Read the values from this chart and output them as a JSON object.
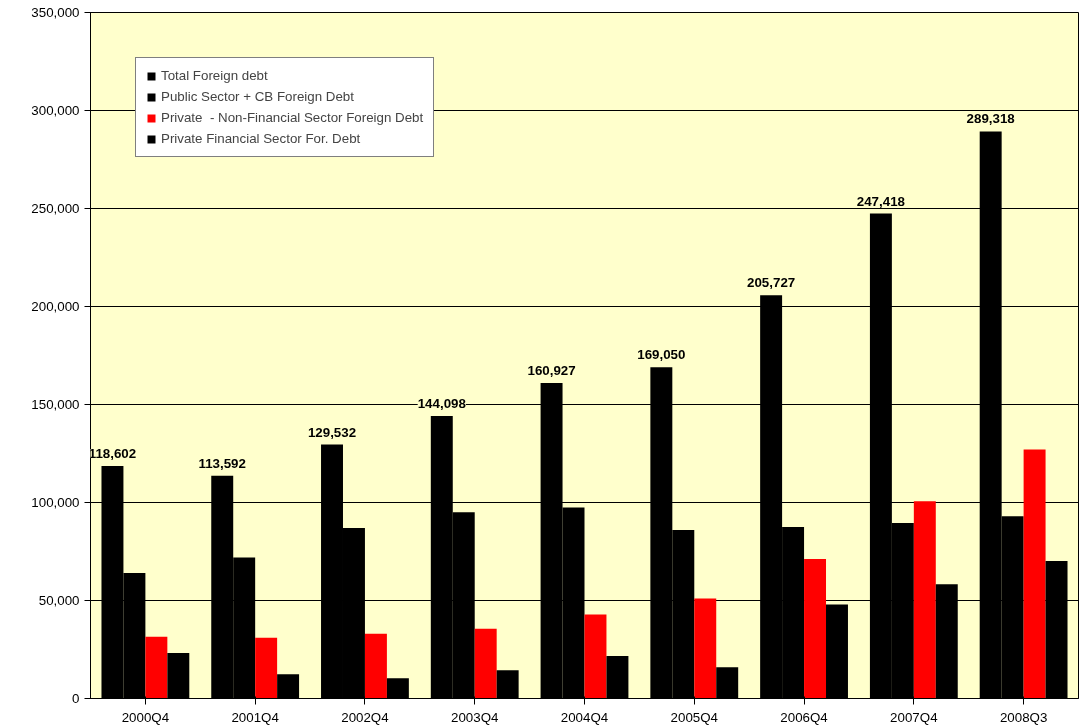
{
  "chart_data": {
    "type": "bar",
    "categories": [
      "2000Q4",
      "2001Q4",
      "2002Q4",
      "2003Q4",
      "2004Q4",
      "2005Q4",
      "2006Q4",
      "2007Q4",
      "2008Q3"
    ],
    "series": [
      {
        "name": "Total Foreign debt",
        "color": "#000000",
        "values": [
          118602,
          113592,
          129532,
          144098,
          160927,
          169050,
          205727,
          247418,
          289318
        ],
        "value_labels": [
          "118,602",
          "113,592",
          "129,532",
          "144,098",
          "160,927",
          "169,050",
          "205,727",
          "247,418",
          "289,318"
        ]
      },
      {
        "name": "Public Sector + CB Foreign Debt",
        "color": "#000000",
        "values": [
          64000,
          72000,
          87000,
          95000,
          97500,
          86000,
          87500,
          89500,
          93000
        ]
      },
      {
        "name": "Private  - Non-Financial Sector Foreign Debt",
        "color": "#ff0000",
        "values": [
          31500,
          31000,
          33000,
          35600,
          42800,
          51000,
          71200,
          100600,
          127000
        ]
      },
      {
        "name": "Private Financial Sector For. Debt",
        "color": "#000000",
        "values": [
          23200,
          12400,
          10300,
          14400,
          21700,
          16000,
          48000,
          58300,
          70200
        ]
      }
    ],
    "ylim": [
      0,
      350000
    ],
    "yticks": [
      0,
      {
        "value": 50000,
        "label": "50,000"
      },
      {
        "value": 100000,
        "label": "100,000"
      },
      {
        "value": 150000,
        "label": "150,000"
      },
      {
        "value": 200000,
        "label": "200,000"
      },
      {
        "value": 250000,
        "label": "250,000"
      },
      {
        "value": 300000,
        "label": "300,000"
      },
      {
        "value": 350000,
        "label": "350,000"
      }
    ],
    "grid": "y",
    "legend": "top left"
  }
}
